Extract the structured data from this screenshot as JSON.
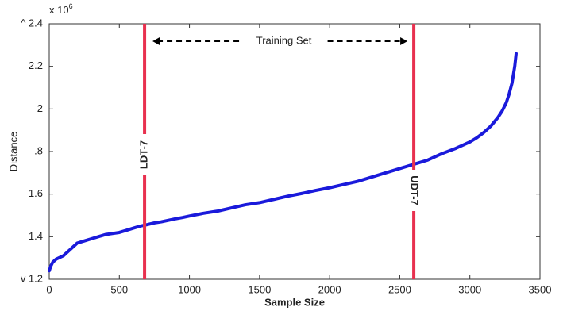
{
  "chart_data": {
    "type": "line",
    "xlabel": "Sample Size",
    "ylabel": "Distance",
    "multiplier_base": "x 10",
    "multiplier_exponent": "6",
    "annotation": "Training Set",
    "xlim": [
      0,
      3500
    ],
    "xticks": [
      0,
      500,
      1000,
      1500,
      2000,
      2500,
      3000,
      3500
    ],
    "ylim": [
      1.2,
      2.4
    ],
    "yticks": [
      {
        "value": 1.2,
        "label": "v 1.2"
      },
      1.4,
      1.6,
      {
        "value": 1.8,
        "label": ".8"
      },
      2,
      2.2,
      {
        "value": 2.4,
        "label": "^ 2.4"
      }
    ],
    "thresholds": [
      {
        "name": "LDT-7",
        "x": 680
      },
      {
        "name": "UDT-7",
        "x": 2600
      }
    ],
    "threshold_color": "#e8314f",
    "series": [
      {
        "name": "Distance",
        "color": "#1a1adb",
        "x": [
          0,
          10,
          25,
          50,
          100,
          150,
          200,
          250,
          300,
          350,
          400,
          450,
          500,
          550,
          600,
          650,
          700,
          750,
          800,
          850,
          900,
          950,
          1000,
          1100,
          1200,
          1300,
          1400,
          1500,
          1600,
          1700,
          1800,
          1900,
          2000,
          2100,
          2200,
          2300,
          2400,
          2500,
          2600,
          2700,
          2800,
          2900,
          3000,
          3050,
          3100,
          3150,
          3200,
          3230,
          3260,
          3280,
          3300,
          3310,
          3320,
          3330
        ],
        "values": [
          1.24,
          1.26,
          1.28,
          1.295,
          1.31,
          1.34,
          1.37,
          1.38,
          1.39,
          1.4,
          1.41,
          1.415,
          1.42,
          1.43,
          1.44,
          1.45,
          1.457,
          1.465,
          1.47,
          1.477,
          1.484,
          1.49,
          1.497,
          1.51,
          1.52,
          1.535,
          1.55,
          1.56,
          1.575,
          1.59,
          1.603,
          1.617,
          1.63,
          1.645,
          1.66,
          1.68,
          1.7,
          1.72,
          1.74,
          1.76,
          1.79,
          1.815,
          1.845,
          1.865,
          1.89,
          1.92,
          1.96,
          1.99,
          2.03,
          2.07,
          2.12,
          2.16,
          2.2,
          2.26
        ]
      }
    ]
  }
}
